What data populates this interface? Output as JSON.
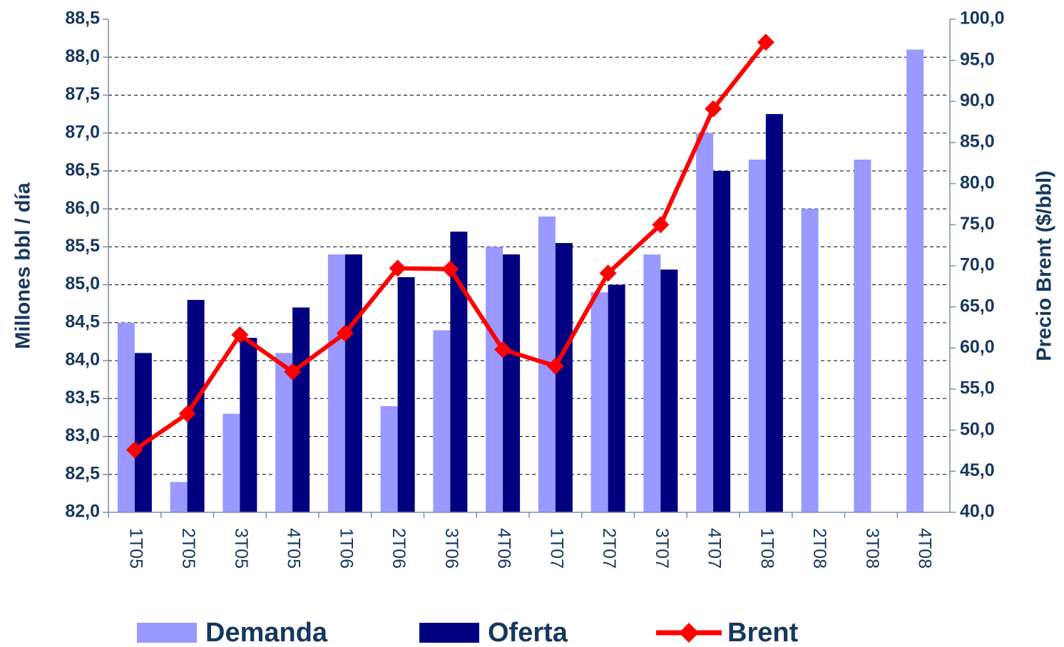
{
  "chart_data": {
    "type": "bar",
    "y_label": "Millones bbl / día",
    "y2_label": "Precio Brent ($/bbl)",
    "categories": [
      "1T05",
      "2T05",
      "3T05",
      "4T05",
      "1T06",
      "2T06",
      "3T06",
      "4T06",
      "1T07",
      "2T07",
      "3T07",
      "4T07",
      "1T08",
      "2T08",
      "3T08",
      "4T08"
    ],
    "series": [
      {
        "name": "Demanda",
        "color": "#9999ff",
        "type": "bar",
        "values": [
          84.5,
          82.4,
          83.3,
          84.1,
          85.4,
          83.4,
          84.4,
          85.5,
          85.9,
          84.9,
          85.4,
          87.0,
          86.65,
          86.0,
          86.65,
          88.1
        ]
      },
      {
        "name": "Oferta",
        "color": "#000080",
        "type": "bar",
        "values": [
          84.1,
          84.8,
          84.3,
          84.7,
          85.4,
          85.1,
          85.7,
          85.4,
          85.55,
          85.0,
          85.2,
          86.5,
          87.25,
          null,
          null,
          null
        ]
      },
      {
        "name": "Brent",
        "color": "#ff0000",
        "type": "line",
        "axis": "y2",
        "values": [
          47.6,
          52.0,
          61.6,
          57.1,
          61.8,
          69.7,
          69.6,
          59.8,
          57.8,
          69.1,
          75.0,
          89.1,
          97.2,
          null,
          null,
          null
        ]
      }
    ],
    "ylim": [
      82.0,
      88.5
    ],
    "yticks": [
      {
        "value": 82.0,
        "label": "82,0"
      },
      {
        "value": 82.5,
        "label": "82,5"
      },
      {
        "value": 83.0,
        "label": "83,0"
      },
      {
        "value": 83.5,
        "label": "83,5"
      },
      {
        "value": 84.0,
        "label": "84,0"
      },
      {
        "value": 84.5,
        "label": "84,5"
      },
      {
        "value": 85.0,
        "label": "85,0"
      },
      {
        "value": 85.5,
        "label": "85,5"
      },
      {
        "value": 86.0,
        "label": "86,0"
      },
      {
        "value": 86.5,
        "label": "86,5"
      },
      {
        "value": 87.0,
        "label": "87,0"
      },
      {
        "value": 87.5,
        "label": "87,5"
      },
      {
        "value": 88.0,
        "label": "88,0"
      },
      {
        "value": 88.5,
        "label": "88,5"
      }
    ],
    "y2lim": [
      40,
      100
    ],
    "y2ticks": [
      {
        "value": 40,
        "label": "40,0"
      },
      {
        "value": 45,
        "label": "45,0"
      },
      {
        "value": 50,
        "label": "50,0"
      },
      {
        "value": 55,
        "label": "55,0"
      },
      {
        "value": 60,
        "label": "60,0"
      },
      {
        "value": 65,
        "label": "65,0"
      },
      {
        "value": 70,
        "label": "70,0"
      },
      {
        "value": 75,
        "label": "75,0"
      },
      {
        "value": 80,
        "label": "80,0"
      },
      {
        "value": 85,
        "label": "85,0"
      },
      {
        "value": 90,
        "label": "90,0"
      },
      {
        "value": 95,
        "label": "95,0"
      },
      {
        "value": 100,
        "label": "100,0"
      }
    ],
    "grid": true,
    "legend": "bottom"
  }
}
